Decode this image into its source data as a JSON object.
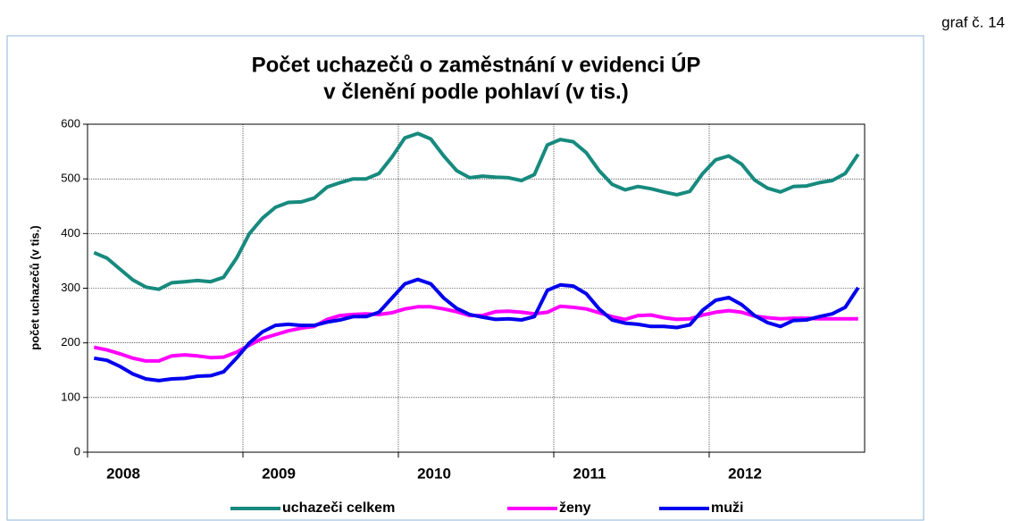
{
  "chart_data": {
    "type": "line",
    "title": [
      "Počet uchazečů o zaměstnání v evidenci ÚP",
      "v členění podle pohlaví (v tis.)"
    ],
    "annotation": "graf č. 14",
    "y_label": "počet uchazečů (v tis.)",
    "categories": [
      "2008",
      null,
      null,
      null,
      null,
      null,
      null,
      null,
      null,
      null,
      null,
      null,
      "2009",
      null,
      null,
      null,
      null,
      null,
      null,
      null,
      null,
      null,
      null,
      null,
      "2010",
      null,
      null,
      null,
      null,
      null,
      null,
      null,
      null,
      null,
      null,
      null,
      "2011",
      null,
      null,
      null,
      null,
      null,
      null,
      null,
      null,
      null,
      null,
      null,
      "2012",
      null,
      null,
      null,
      null,
      null,
      null,
      null,
      null,
      null,
      null,
      null
    ],
    "series": [
      {
        "name": "uchazeči celkem",
        "color": "#178a7e",
        "values": [
          365,
          355,
          335,
          315,
          302,
          298,
          310,
          312,
          314,
          312,
          320,
          355,
          400,
          428,
          448,
          457,
          458,
          465,
          485,
          493,
          500,
          500,
          510,
          540,
          575,
          583,
          573,
          542,
          515,
          502,
          505,
          503,
          502,
          497,
          508,
          562,
          572,
          568,
          548,
          515,
          490,
          480,
          486,
          482,
          476,
          471,
          477,
          510,
          535,
          542,
          527,
          498,
          483,
          476,
          486,
          487,
          493,
          497,
          510,
          545
        ]
      },
      {
        "name": "ženy",
        "color": "#ff00ff",
        "values": [
          192,
          187,
          180,
          172,
          167,
          167,
          176,
          178,
          176,
          173,
          174,
          183,
          196,
          208,
          215,
          222,
          227,
          230,
          243,
          250,
          252,
          253,
          252,
          255,
          262,
          266,
          266,
          262,
          257,
          250,
          250,
          257,
          258,
          256,
          253,
          256,
          267,
          265,
          262,
          255,
          248,
          243,
          250,
          251,
          246,
          243,
          244,
          251,
          256,
          259,
          256,
          249,
          246,
          244,
          245,
          245,
          244,
          244,
          244,
          244
        ]
      },
      {
        "name": "muži",
        "color": "#0000ee",
        "values": [
          172,
          168,
          157,
          143,
          134,
          131,
          134,
          135,
          139,
          140,
          147,
          172,
          200,
          220,
          232,
          234,
          232,
          232,
          238,
          242,
          248,
          248,
          256,
          282,
          308,
          316,
          308,
          282,
          263,
          252,
          247,
          243,
          244,
          242,
          248,
          296,
          306,
          304,
          290,
          262,
          242,
          236,
          234,
          230,
          230,
          228,
          233,
          260,
          278,
          283,
          270,
          250,
          237,
          230,
          241,
          242,
          248,
          253,
          265,
          301
        ]
      }
    ],
    "ylim": [
      0,
      600
    ],
    "yticks": [
      0,
      100,
      200,
      300,
      400,
      500,
      600
    ],
    "grid": true
  }
}
